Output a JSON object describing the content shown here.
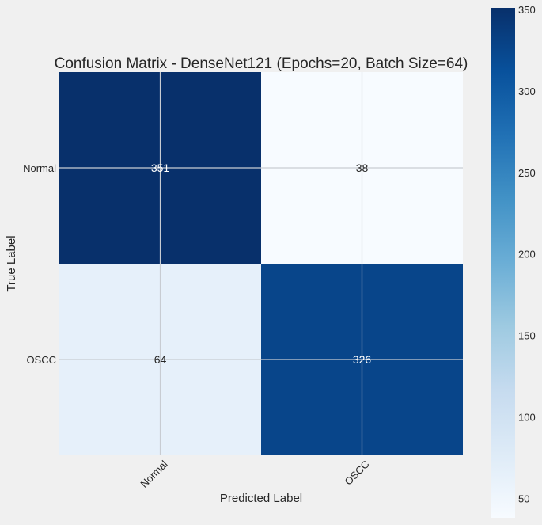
{
  "chart_data": {
    "type": "heatmap",
    "title": "Confusion Matrix - DenseNet121 (Epochs=20, Batch Size=64)",
    "xlabel": "Predicted Label",
    "ylabel": "True Label",
    "x_categories": [
      "Normal",
      "OSCC"
    ],
    "y_categories": [
      "Normal",
      "OSCC"
    ],
    "matrix": [
      [
        351,
        38
      ],
      [
        64,
        326
      ]
    ],
    "colormap": "Blues",
    "colorbar": {
      "min": 38,
      "max": 351,
      "ticks": [
        50,
        100,
        150,
        200,
        250,
        300,
        350
      ]
    },
    "grid": true
  },
  "colors": {
    "background": "#f0f0f0",
    "grid": "#c8ccd2",
    "text_dark": "#262626",
    "text_light": "#ffffff"
  }
}
